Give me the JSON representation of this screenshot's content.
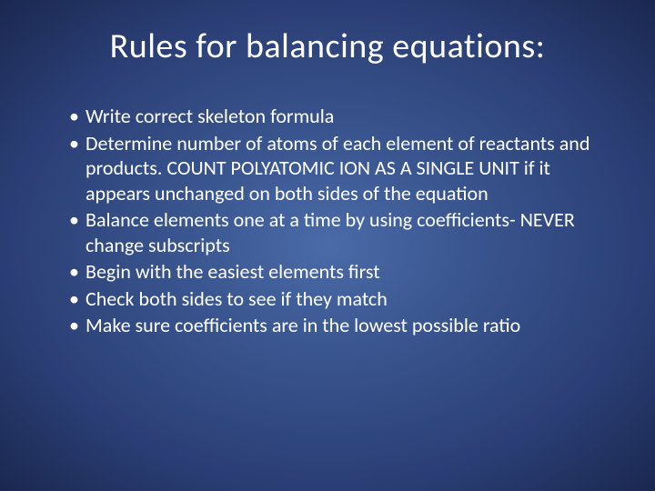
{
  "slide": {
    "title": "Rules for balancing equations:",
    "bullets": [
      "Write correct skeleton formula",
      "Determine number of atoms of each element of reactants and products.  COUNT POLYATOMIC ION AS A SINGLE UNIT if it appears unchanged on both sides of the equation",
      "Balance elements one at a time by using coefficients- NEVER change subscripts",
      "Begin with the easiest elements first",
      "Check both sides to see if they match",
      "Make sure coefficients are in the lowest possible ratio"
    ],
    "colors": {
      "background_center": "#4a6ba8",
      "background_mid": "#3a5690",
      "background_outer": "#2a3e74",
      "background_edge": "#1a2850",
      "text": "#ffffff"
    },
    "typography": {
      "title_fontsize": 38,
      "title_weight": 400,
      "body_fontsize": 22,
      "font_family": "Calibri"
    }
  }
}
